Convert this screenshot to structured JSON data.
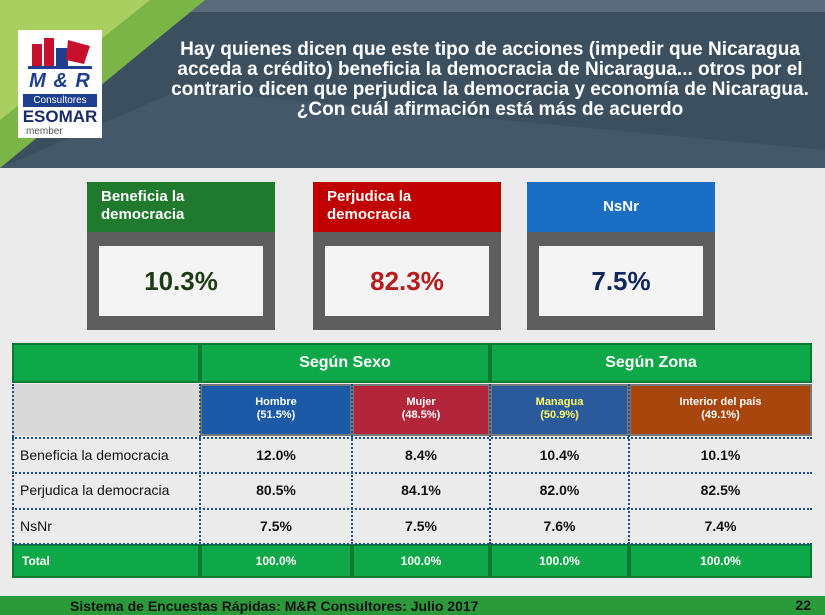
{
  "header": {
    "title": "Hay quienes dicen que este tipo de acciones (impedir que Nicaragua acceda a crédito) beneficia la democracia de Nicaragua... otros por el contrario dicen que perjudica la democracia y economía de Nicaragua. ¿Con cuál afirmación está más de acuerdo",
    "logo_brand": "M & R",
    "logo_sub": "Consultores",
    "logo_esomar": "ESOMAR",
    "logo_member": "member"
  },
  "summary": [
    {
      "label": "Beneficia la democracia",
      "value": "10.3%"
    },
    {
      "label": "Perjudica la democracia",
      "value": "82.3%"
    },
    {
      "label": "NsNr",
      "value": "7.5%"
    }
  ],
  "colors": {
    "beneficia": "#1f7a2d",
    "perjudica": "#c00000",
    "nsnr": "#1a6fc4",
    "total_green": "#0fa848"
  },
  "chart_data": {
    "type": "table",
    "summary_values": {
      "Beneficia la democracia": 10.3,
      "Perjudica la democracia": 82.3,
      "NsNr": 7.5
    },
    "groups": [
      {
        "label": "Según Sexo",
        "columns": [
          0,
          1
        ]
      },
      {
        "label": "Según Zona",
        "columns": [
          2,
          3
        ]
      }
    ],
    "columns": [
      {
        "name": "Hombre",
        "share": "(51.5%)",
        "color": "#1c5aa8"
      },
      {
        "name": "Mujer",
        "share": "(48.5%)",
        "color": "#b3263a"
      },
      {
        "name": "Managua",
        "share": "(50.9%)",
        "color": "#2a5a9a"
      },
      {
        "name": "Interior del país",
        "share": "(49.1%)",
        "color": "#a8460d"
      }
    ],
    "rows": [
      {
        "label": "Beneficia la democracia",
        "values": [
          "12.0%",
          "8.4%",
          "10.4%",
          "10.1%"
        ]
      },
      {
        "label": "Perjudica la democracia",
        "values": [
          "80.5%",
          "84.1%",
          "82.0%",
          "82.5%"
        ]
      },
      {
        "label": "NsNr",
        "values": [
          "7.5%",
          "7.5%",
          "7.6%",
          "7.4%"
        ]
      }
    ],
    "total": {
      "label": "Total",
      "values": [
        "100.0%",
        "100.0%",
        "100.0%",
        "100.0%"
      ]
    }
  },
  "footer": {
    "source": "Sistema de Encuestas Rápidas: M&R Consultores: Julio 2017",
    "page": "22"
  }
}
